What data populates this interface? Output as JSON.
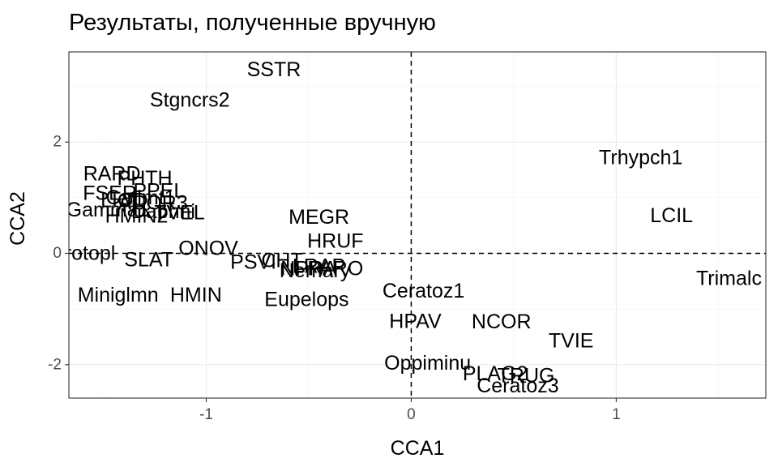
{
  "chart_data": {
    "type": "scatter",
    "title": "Результаты, полученные вручную",
    "xlabel": "CCA1",
    "ylabel": "CCA2",
    "xlim": [
      -1.67,
      1.73
    ],
    "ylim": [
      -2.6,
      3.62
    ],
    "x_ticks": [
      -1,
      0,
      1
    ],
    "y_ticks": [
      -2,
      0,
      2
    ],
    "x_tick_labels": [
      "-1",
      "0",
      "1"
    ],
    "y_tick_labels": [
      "-2",
      "0",
      "2"
    ],
    "grid": true,
    "reference_lines": [
      {
        "axis": "x",
        "value": 0,
        "style": "dashed"
      },
      {
        "axis": "y",
        "value": 0,
        "style": "dashed"
      }
    ],
    "points": [
      {
        "label": "SSTR",
        "x": -0.67,
        "y": 3.3
      },
      {
        "label": "Stgncrs2",
        "x": -1.08,
        "y": 2.75
      },
      {
        "label": "Trhypch1",
        "x": 1.12,
        "y": 1.72
      },
      {
        "label": "RARD",
        "x": -1.46,
        "y": 1.43
      },
      {
        "label": "PHTH",
        "x": -1.3,
        "y": 1.35
      },
      {
        "label": "FSER",
        "x": -1.47,
        "y": 1.08
      },
      {
        "label": "PPEL",
        "x": -1.23,
        "y": 1.12
      },
      {
        "label": "Catlmt1",
        "x": -1.32,
        "y": 1.0
      },
      {
        "label": "LIOD",
        "x": -1.4,
        "y": 0.95
      },
      {
        "label": "ACOR3",
        "x": -1.26,
        "y": 0.9
      },
      {
        "label": "Gamma1",
        "x": -1.48,
        "y": 0.78
      },
      {
        "label": "HMIN2",
        "x": -1.34,
        "y": 0.67
      },
      {
        "label": "Daphni",
        "x": -1.21,
        "y": 0.75
      },
      {
        "label": "TVEL",
        "x": -1.13,
        "y": 0.73
      },
      {
        "label": "MEGR",
        "x": -0.45,
        "y": 0.65
      },
      {
        "label": "LCIL",
        "x": 1.27,
        "y": 0.68
      },
      {
        "label": "HRUF",
        "x": -0.37,
        "y": 0.22
      },
      {
        "label": "ONOV",
        "x": -0.99,
        "y": 0.09
      },
      {
        "label": "Protopl",
        "x": -1.6,
        "y": 0.0
      },
      {
        "label": "SLAT",
        "x": -1.28,
        "y": -0.12
      },
      {
        "label": "PSVI",
        "x": -0.77,
        "y": -0.16
      },
      {
        "label": "CHT",
        "x": -0.63,
        "y": -0.13
      },
      {
        "label": "NPRA",
        "x": -0.5,
        "y": -0.28
      },
      {
        "label": "LRAP",
        "x": -0.45,
        "y": -0.23
      },
      {
        "label": "PARO",
        "x": -0.37,
        "y": -0.28
      },
      {
        "label": "Nemary",
        "x": -0.47,
        "y": -0.31
      },
      {
        "label": "Trimalc",
        "x": 1.55,
        "y": -0.45
      },
      {
        "label": "Miniglmn",
        "x": -1.43,
        "y": -0.75
      },
      {
        "label": "HMIN",
        "x": -1.05,
        "y": -0.75
      },
      {
        "label": "Ceratoz1",
        "x": 0.06,
        "y": -0.68
      },
      {
        "label": "Eupelops",
        "x": -0.51,
        "y": -0.83
      },
      {
        "label": "HPAV",
        "x": 0.02,
        "y": -1.22
      },
      {
        "label": "NCOR",
        "x": 0.44,
        "y": -1.23
      },
      {
        "label": "TVIE",
        "x": 0.78,
        "y": -1.57
      },
      {
        "label": "Oppiminu",
        "x": 0.08,
        "y": -1.97
      },
      {
        "label": "PLAG2",
        "x": 0.41,
        "y": -2.16
      },
      {
        "label": "TRUG",
        "x": 0.56,
        "y": -2.2
      },
      {
        "label": "Ceratoz3",
        "x": 0.52,
        "y": -2.38
      }
    ]
  }
}
